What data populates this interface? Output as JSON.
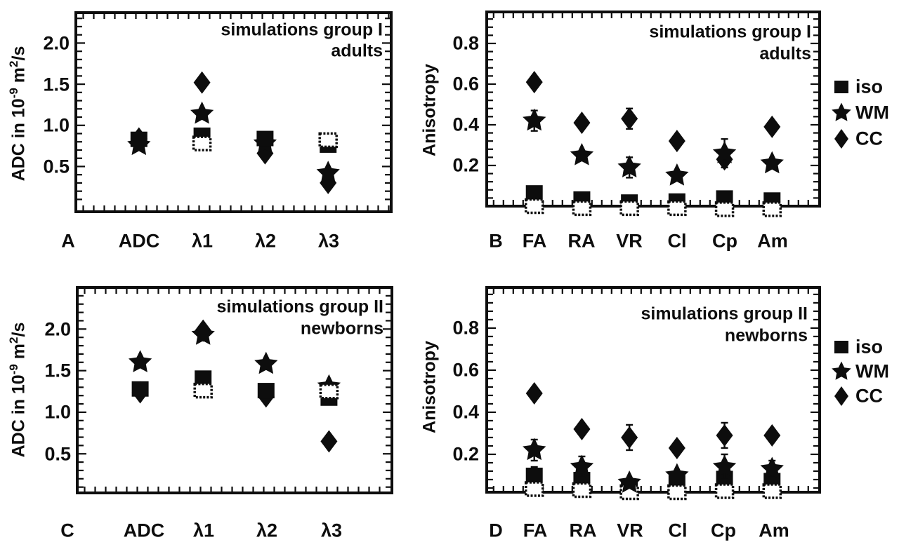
{
  "legend": {
    "items": [
      {
        "label": "iso",
        "marker": "square"
      },
      {
        "label": "WM",
        "marker": "star"
      },
      {
        "label": "CC",
        "marker": "diamond"
      }
    ]
  },
  "marker_color": "#0d0d0d",
  "chart_data": [
    {
      "type": "scatter",
      "panel_letter": "A",
      "title_lines": [
        "simulations group I",
        "adults"
      ],
      "ylabel": {
        "pre": "ADC in 10",
        "sup1": "-9",
        "mid": " m",
        "sup2": "2",
        "post": "/s"
      },
      "categories": [
        "ADC",
        "λ1",
        "λ2",
        "λ3"
      ],
      "y_ticks": [
        {
          "v": 0.5,
          "label": "0.5"
        },
        {
          "v": 1.0,
          "label": "1.0"
        },
        {
          "v": 1.5,
          "label": "1.5"
        },
        {
          "v": 2.0,
          "label": "2.0"
        }
      ],
      "y_range": [
        -0.05,
        2.37
      ],
      "grid": false,
      "draw_order": [
        "CC",
        "WM",
        "iso",
        "open_square"
      ],
      "series": {
        "CC": {
          "values": [
            0.84,
            1.52,
            0.66,
            0.3
          ],
          "errors": [
            null,
            null,
            null,
            null
          ]
        },
        "WM": {
          "values": [
            0.76,
            1.14,
            0.78,
            0.42
          ],
          "errors": [
            null,
            null,
            null,
            null
          ]
        },
        "iso": {
          "values": [
            0.83,
            0.88,
            0.84,
            0.76
          ],
          "errors": [
            null,
            null,
            null,
            null
          ]
        },
        "open_square": {
          "values": [
            null,
            0.78,
            null,
            0.82
          ],
          "errors": [
            null,
            null,
            null,
            null
          ]
        }
      }
    },
    {
      "type": "scatter",
      "panel_letter": "B",
      "title_lines": [
        "simulations group I",
        "adults"
      ],
      "ylabel": {
        "pre": "Anisotropy",
        "sup1": "",
        "mid": "",
        "sup2": "",
        "post": ""
      },
      "categories": [
        "FA",
        "RA",
        "VR",
        "Cl",
        "Cp",
        "Am"
      ],
      "y_ticks": [
        {
          "v": 0.2,
          "label": "0.2"
        },
        {
          "v": 0.4,
          "label": "0.4"
        },
        {
          "v": 0.6,
          "label": "0.6"
        },
        {
          "v": 0.8,
          "label": "0.8"
        }
      ],
      "y_range": [
        0,
        0.955
      ],
      "grid": false,
      "draw_order": [
        "CC",
        "iso",
        "open_square",
        "WM"
      ],
      "series": {
        "CC": {
          "values": [
            0.61,
            0.41,
            0.43,
            0.32,
            0.23,
            0.39
          ],
          "errors": [
            null,
            null,
            0.05,
            null,
            null,
            null
          ]
        },
        "WM": {
          "values": [
            0.42,
            0.25,
            0.19,
            0.15,
            0.26,
            0.21
          ],
          "errors": [
            0.05,
            null,
            0.05,
            null,
            0.07,
            null
          ]
        },
        "iso": {
          "values": [
            0.065,
            0.035,
            0.02,
            0.025,
            0.04,
            0.03
          ],
          "errors": [
            null,
            null,
            null,
            null,
            null,
            null
          ]
        },
        "open_square": {
          "values": [
            0.0,
            -0.01,
            -0.01,
            -0.01,
            -0.015,
            -0.015
          ],
          "errors": [
            null,
            null,
            null,
            null,
            null,
            null
          ]
        }
      }
    },
    {
      "type": "scatter",
      "panel_letter": "C",
      "title_lines": [
        "simulations group II",
        "newborns"
      ],
      "ylabel": {
        "pre": "ADC in 10",
        "sup1": "-9",
        "mid": " m",
        "sup2": "2",
        "post": "/s"
      },
      "categories": [
        "ADC",
        "λ1",
        "λ2",
        "λ3"
      ],
      "y_ticks": [
        {
          "v": 0.5,
          "label": "0.5"
        },
        {
          "v": 1.0,
          "label": "1.0"
        },
        {
          "v": 1.5,
          "label": "1.5"
        },
        {
          "v": 2.0,
          "label": "2.0"
        }
      ],
      "y_range": [
        0.03,
        2.5
      ],
      "grid": false,
      "draw_order": [
        "CC",
        "WM",
        "iso",
        "open_square"
      ],
      "series": {
        "CC": {
          "values": [
            1.24,
            1.98,
            1.19,
            0.65
          ],
          "errors": [
            null,
            null,
            null,
            null
          ]
        },
        "WM": {
          "values": [
            1.6,
            1.93,
            1.58,
            1.31
          ],
          "errors": [
            null,
            null,
            null,
            null
          ]
        },
        "iso": {
          "values": [
            1.28,
            1.41,
            1.26,
            1.17
          ],
          "errors": [
            null,
            null,
            null,
            null
          ]
        },
        "open_square": {
          "values": [
            null,
            1.26,
            null,
            1.25
          ],
          "errors": [
            null,
            null,
            null,
            null
          ]
        }
      }
    },
    {
      "type": "scatter",
      "panel_letter": "D",
      "title_lines": [
        "simulations group II",
        "newborns"
      ],
      "ylabel": {
        "pre": "Anisotropy",
        "sup1": "",
        "mid": "",
        "sup2": "",
        "post": ""
      },
      "categories": [
        "FA",
        "RA",
        "VR",
        "Cl",
        "Cp",
        "Am"
      ],
      "y_ticks": [
        {
          "v": 0.2,
          "label": "0.2"
        },
        {
          "v": 0.4,
          "label": "0.4"
        },
        {
          "v": 0.6,
          "label": "0.6"
        },
        {
          "v": 0.8,
          "label": "0.8"
        }
      ],
      "y_range": [
        0.02,
        0.993
      ],
      "grid": false,
      "draw_order": [
        "CC",
        "iso",
        "open_square",
        "WM"
      ],
      "series": {
        "CC": {
          "values": [
            0.49,
            0.32,
            0.28,
            0.23,
            0.29,
            0.29
          ],
          "errors": [
            null,
            null,
            0.06,
            null,
            0.06,
            null
          ]
        },
        "WM": {
          "values": [
            0.22,
            0.14,
            0.065,
            0.1,
            0.14,
            0.13
          ],
          "errors": [
            0.05,
            0.05,
            null,
            null,
            0.06,
            0.04
          ]
        },
        "iso": {
          "values": [
            0.1,
            0.08,
            0.045,
            0.065,
            0.085,
            0.075
          ],
          "errors": [
            0.04,
            null,
            null,
            null,
            null,
            null
          ]
        },
        "open_square": {
          "values": [
            0.035,
            0.03,
            0.02,
            0.02,
            0.025,
            0.025
          ],
          "errors": [
            null,
            null,
            null,
            null,
            null,
            null
          ]
        }
      }
    }
  ]
}
